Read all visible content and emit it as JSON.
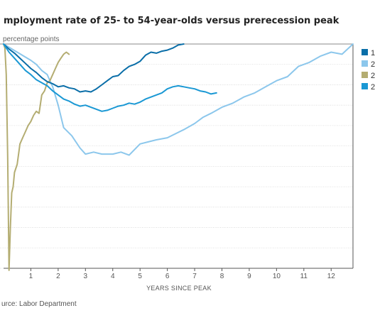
{
  "header": {
    "title": "mployment rate of 25- to 54-year-olds versus prerecession peak",
    "subtitle": "percentage points"
  },
  "footer": {
    "source": "urce: Labor Department"
  },
  "chart_data": {
    "type": "line",
    "title": "mployment rate of 25- to 54-year-olds versus prerecession peak",
    "ylabel": "percentage points",
    "xlabel": "YEARS SINCE PEAK",
    "x_ticks": [
      1,
      2,
      3,
      4,
      5,
      6,
      7,
      8,
      9,
      10,
      11,
      12
    ],
    "xlim": [
      0,
      12.8
    ],
    "ylim": [
      -11,
      0
    ],
    "grid": true,
    "legend": "right",
    "legend_labels": [
      "1",
      "2",
      "2",
      "2"
    ],
    "series": [
      {
        "name": "1",
        "color": "#0a6ea8",
        "x": [
          0,
          0.2,
          0.4,
          0.6,
          0.8,
          1.0,
          1.2,
          1.4,
          1.6,
          1.8,
          2.0,
          2.2,
          2.4,
          2.6,
          2.8,
          3.0,
          3.2,
          3.4,
          3.6,
          3.8,
          4.0,
          4.2,
          4.4,
          4.6,
          4.8,
          5.0,
          5.2,
          5.4,
          5.6,
          5.8,
          6.0,
          6.2,
          6.4,
          6.6
        ],
        "y": [
          0,
          -0.25,
          -0.45,
          -0.7,
          -0.95,
          -1.2,
          -1.4,
          -1.65,
          -1.85,
          -1.95,
          -2.1,
          -2.05,
          -2.15,
          -2.2,
          -2.35,
          -2.3,
          -2.35,
          -2.2,
          -2.0,
          -1.8,
          -1.6,
          -1.55,
          -1.3,
          -1.1,
          -1.0,
          -0.85,
          -0.55,
          -0.4,
          -0.45,
          -0.35,
          -0.3,
          -0.2,
          -0.05,
          0
        ]
      },
      {
        "name": "2",
        "color": "#8cc7ec",
        "x": [
          0,
          0.5,
          1.0,
          1.2,
          1.4,
          1.6,
          1.8,
          2.0,
          2.2,
          2.5,
          2.8,
          3.0,
          3.3,
          3.6,
          4.0,
          4.3,
          4.6,
          5.0,
          5.3,
          5.6,
          6.0,
          6.3,
          6.6,
          7.0,
          7.3,
          7.6,
          8.0,
          8.4,
          8.8,
          9.2,
          9.6,
          10.0,
          10.4,
          10.8,
          11.2,
          11.6,
          12.0,
          12.4,
          12.8
        ],
        "y": [
          0,
          -0.4,
          -0.8,
          -1.0,
          -1.3,
          -1.5,
          -2.1,
          -3.0,
          -4.1,
          -4.5,
          -5.1,
          -5.4,
          -5.3,
          -5.4,
          -5.4,
          -5.3,
          -5.45,
          -4.9,
          -4.8,
          -4.7,
          -4.6,
          -4.4,
          -4.2,
          -3.9,
          -3.6,
          -3.4,
          -3.1,
          -2.9,
          -2.6,
          -2.4,
          -2.1,
          -1.8,
          -1.6,
          -1.1,
          -0.9,
          -0.6,
          -0.4,
          -0.5,
          0
        ]
      },
      {
        "name": "2",
        "color": "#b4ad72",
        "x": [
          0,
          0.05,
          0.1,
          0.15,
          0.2,
          0.25,
          0.3,
          0.35,
          0.4,
          0.5,
          0.6,
          0.7,
          0.8,
          0.9,
          1.0,
          1.1,
          1.2,
          1.3,
          1.4,
          1.5,
          1.6,
          1.7,
          1.8,
          1.9,
          2.0,
          2.1,
          2.2,
          2.3,
          2.4
        ],
        "y": [
          0,
          -0.2,
          -1.5,
          -5.5,
          -11.1,
          -9.0,
          -7.3,
          -7.0,
          -6.3,
          -5.9,
          -4.9,
          -4.6,
          -4.3,
          -4.0,
          -3.8,
          -3.5,
          -3.3,
          -3.4,
          -2.5,
          -2.3,
          -1.9,
          -1.8,
          -1.5,
          -1.2,
          -0.9,
          -0.7,
          -0.5,
          -0.4,
          -0.5
        ]
      },
      {
        "name": "2",
        "color": "#1a98d4",
        "x": [
          0,
          0.2,
          0.4,
          0.6,
          0.8,
          1.0,
          1.2,
          1.4,
          1.6,
          1.8,
          2.0,
          2.2,
          2.4,
          2.6,
          2.8,
          3.0,
          3.2,
          3.4,
          3.6,
          3.8,
          4.0,
          4.2,
          4.4,
          4.6,
          4.8,
          5.0,
          5.2,
          5.4,
          5.6,
          5.8,
          6.0,
          6.2,
          6.4,
          6.6,
          6.8,
          7.0,
          7.2,
          7.4,
          7.6,
          7.8
        ],
        "y": [
          0,
          -0.4,
          -0.7,
          -1.0,
          -1.3,
          -1.5,
          -1.75,
          -1.9,
          -2.05,
          -2.3,
          -2.5,
          -2.7,
          -2.8,
          -2.95,
          -3.05,
          -3.0,
          -3.1,
          -3.2,
          -3.3,
          -3.25,
          -3.15,
          -3.05,
          -3.0,
          -2.9,
          -2.95,
          -2.85,
          -2.7,
          -2.6,
          -2.5,
          -2.4,
          -2.2,
          -2.1,
          -2.05,
          -2.1,
          -2.15,
          -2.2,
          -2.3,
          -2.35,
          -2.45,
          -2.4
        ]
      }
    ]
  }
}
